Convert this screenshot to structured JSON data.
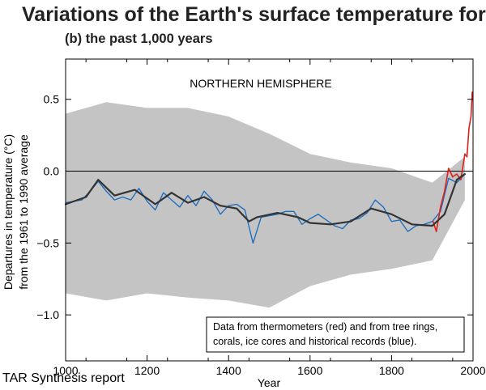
{
  "header": {
    "title": "Variations of the Earth's surface temperature for:",
    "subtitle": "(b) the past 1,000 years"
  },
  "footer": {
    "source": "TAR Synthesis report"
  },
  "colors": {
    "uncertainty": "#c4c4c4",
    "proxy": "#1f6fc0",
    "thermometer": "#e0201a",
    "smoothed": "#333333",
    "zero_line": "#000000"
  },
  "chart_data": {
    "type": "line",
    "region_label": "NORTHERN HEMISPHERE",
    "xlabel": "Year",
    "ylabel_line1": "Departures in temperature (°C)",
    "ylabel_line2": "from the 1961 to 1990 average",
    "xlim": [
      1000,
      2000
    ],
    "ylim": [
      -1.32,
      0.78
    ],
    "x_ticks": [
      1000,
      1200,
      1400,
      1600,
      1800,
      2000
    ],
    "x_tick_labels": [
      "1000",
      "1200",
      "1400",
      "1600",
      "1800",
      "2000"
    ],
    "y_ticks": [
      0.5,
      0.0,
      -0.5,
      -1.0
    ],
    "y_tick_labels": [
      "0.5",
      "0.0",
      "−0.5",
      "−1.0"
    ],
    "annotation_line1": "Data from thermometers (red) and from tree rings,",
    "annotation_line2": "corals, ice cores and historical records (blue).",
    "series": [
      {
        "name": "thermometers (red)",
        "x": [
          1902,
          1910,
          1920,
          1930,
          1940,
          1950,
          1960,
          1970,
          1980,
          1985,
          1990,
          1995,
          1998
        ],
        "y": [
          -0.35,
          -0.42,
          -0.25,
          -0.14,
          0.02,
          -0.04,
          -0.02,
          -0.06,
          0.12,
          0.1,
          0.3,
          0.38,
          0.55
        ]
      },
      {
        "name": "tree rings, corals, ice cores and historical records (blue)",
        "x": [
          1000,
          1020,
          1040,
          1060,
          1080,
          1100,
          1120,
          1140,
          1160,
          1180,
          1200,
          1220,
          1240,
          1260,
          1280,
          1300,
          1320,
          1340,
          1360,
          1380,
          1400,
          1420,
          1440,
          1460,
          1480,
          1500,
          1520,
          1540,
          1560,
          1580,
          1600,
          1620,
          1640,
          1660,
          1680,
          1700,
          1720,
          1740,
          1760,
          1780,
          1800,
          1820,
          1840,
          1860,
          1880,
          1900,
          1920,
          1940,
          1960,
          1980
        ],
        "y": [
          -0.22,
          -0.21,
          -0.2,
          -0.14,
          -0.07,
          -0.14,
          -0.2,
          -0.18,
          -0.2,
          -0.12,
          -0.21,
          -0.27,
          -0.15,
          -0.2,
          -0.25,
          -0.17,
          -0.24,
          -0.14,
          -0.2,
          -0.3,
          -0.24,
          -0.23,
          -0.27,
          -0.5,
          -0.32,
          -0.31,
          -0.3,
          -0.28,
          -0.28,
          -0.37,
          -0.33,
          -0.3,
          -0.34,
          -0.38,
          -0.4,
          -0.34,
          -0.33,
          -0.29,
          -0.2,
          -0.25,
          -0.35,
          -0.34,
          -0.42,
          -0.38,
          -0.37,
          -0.35,
          -0.28,
          -0.05,
          -0.08,
          -0.02
        ]
      },
      {
        "name": "smoothed",
        "x": [
          1000,
          1050,
          1080,
          1120,
          1170,
          1220,
          1260,
          1300,
          1340,
          1380,
          1420,
          1450,
          1470,
          1520,
          1570,
          1600,
          1650,
          1700,
          1750,
          1800,
          1850,
          1900,
          1930,
          1960,
          1980
        ],
        "y": [
          -0.23,
          -0.18,
          -0.06,
          -0.17,
          -0.13,
          -0.23,
          -0.15,
          -0.22,
          -0.18,
          -0.24,
          -0.26,
          -0.35,
          -0.32,
          -0.29,
          -0.32,
          -0.36,
          -0.37,
          -0.35,
          -0.26,
          -0.3,
          -0.37,
          -0.38,
          -0.3,
          -0.06,
          -0.02
        ]
      }
    ],
    "uncertainty": {
      "x": [
        1000,
        1100,
        1200,
        1300,
        1400,
        1500,
        1600,
        1700,
        1800,
        1900,
        1980
      ],
      "upper": [
        0.4,
        0.48,
        0.44,
        0.44,
        0.38,
        0.26,
        0.12,
        0.06,
        0.02,
        -0.08,
        0.1
      ],
      "lower": [
        -0.85,
        -0.9,
        -0.85,
        -0.88,
        -0.9,
        -0.95,
        -0.8,
        -0.72,
        -0.68,
        -0.62,
        -0.2
      ]
    }
  }
}
